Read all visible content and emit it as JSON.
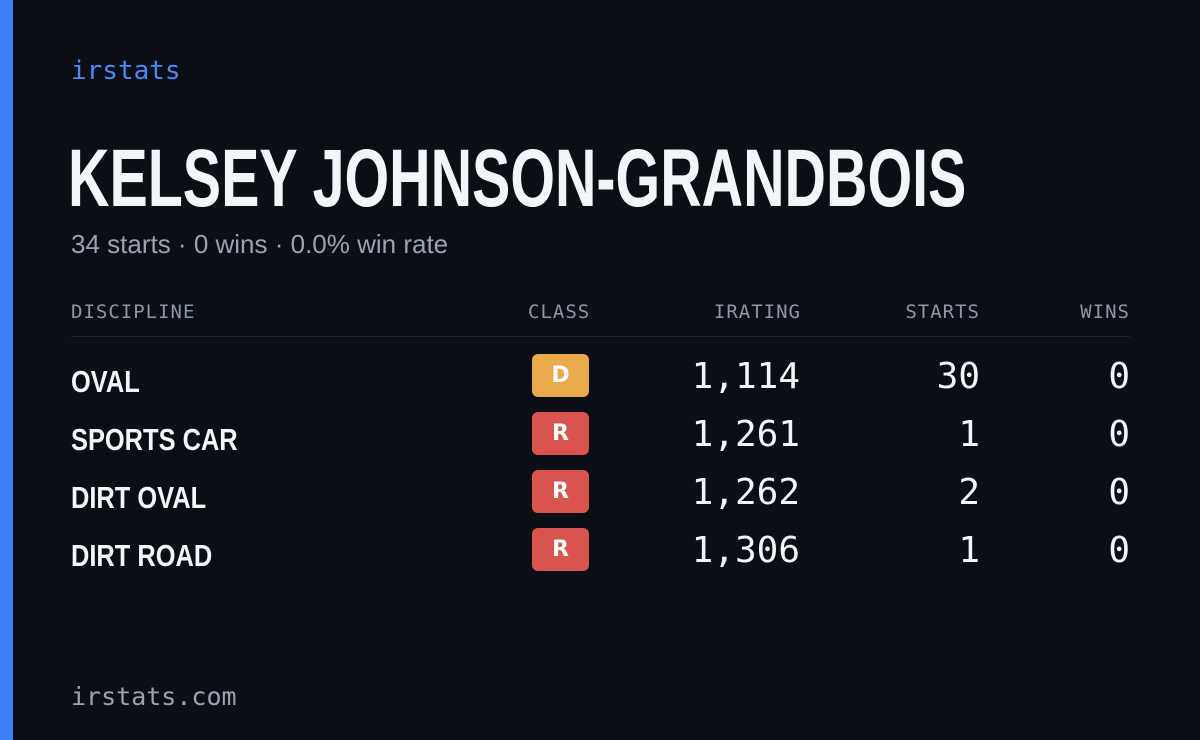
{
  "brand": "irstats",
  "driver": {
    "name": "KELSEY JOHNSON-GRANDBOIS",
    "summary": "34 starts · 0 wins · 0.0% win rate"
  },
  "table": {
    "headers": {
      "discipline": "DISCIPLINE",
      "class": "CLASS",
      "irating": "IRATING",
      "starts": "STARTS",
      "wins": "WINS"
    },
    "rows": [
      {
        "discipline": "OVAL",
        "class": "D",
        "class_color": "#eaa94b",
        "irating": "1,114",
        "starts": "30",
        "wins": "0"
      },
      {
        "discipline": "SPORTS CAR",
        "class": "R",
        "class_color": "#d9534f",
        "irating": "1,261",
        "starts": "1",
        "wins": "0"
      },
      {
        "discipline": "DIRT OVAL",
        "class": "R",
        "class_color": "#d9534f",
        "irating": "1,262",
        "starts": "2",
        "wins": "0"
      },
      {
        "discipline": "DIRT ROAD",
        "class": "R",
        "class_color": "#d9534f",
        "irating": "1,306",
        "starts": "1",
        "wins": "0"
      }
    ]
  },
  "footer": "irstats.com",
  "colors": {
    "accent": "#3b82f6",
    "background": "#0b0e15"
  }
}
